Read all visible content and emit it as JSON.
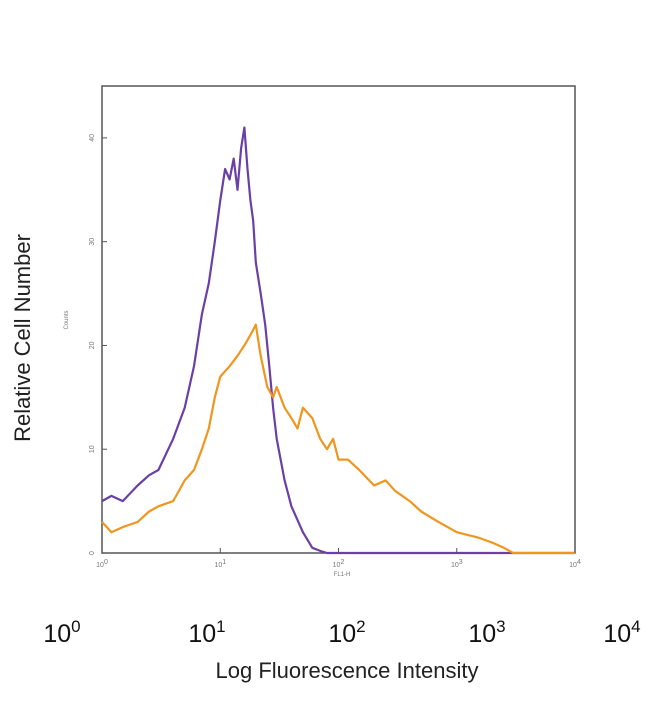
{
  "chart_data": {
    "type": "line",
    "xlabel": "Log Fluorescence Intensity",
    "ylabel": "Relative Cell Number",
    "inner_xlabel": "FL1-H",
    "inner_ylabel": "Counts",
    "x_scale": "log",
    "xlim": [
      1,
      10000
    ],
    "ylim": [
      0,
      45
    ],
    "x_ticks": [
      {
        "value": 1,
        "base": "10",
        "exp": "0"
      },
      {
        "value": 10,
        "base": "10",
        "exp": "1"
      },
      {
        "value": 100,
        "base": "10",
        "exp": "2"
      },
      {
        "value": 1000,
        "base": "10",
        "exp": "3"
      },
      {
        "value": 10000,
        "base": "10",
        "exp": "4"
      }
    ],
    "y_ticks": [
      {
        "value": 0,
        "label": "0"
      },
      {
        "value": 10,
        "label": "10"
      },
      {
        "value": 20,
        "label": "20"
      },
      {
        "value": 30,
        "label": "30"
      },
      {
        "value": 40,
        "label": "40"
      }
    ],
    "grid": false,
    "legend": "none",
    "series": [
      {
        "color": "#6a3fa6",
        "x": [
          1,
          1.2,
          1.5,
          2,
          2.5,
          3,
          4,
          5,
          6,
          7,
          8,
          9,
          10,
          11,
          12,
          13,
          14,
          15,
          16,
          17,
          18,
          19,
          20,
          22,
          24,
          26,
          28,
          30,
          35,
          40,
          50,
          60,
          70,
          80,
          100,
          200,
          500,
          1000,
          10000
        ],
        "y": [
          5,
          5.5,
          5,
          6.5,
          7.5,
          8,
          11,
          14,
          18,
          23,
          26,
          30,
          34,
          37,
          36,
          38,
          35,
          39,
          41,
          37,
          34,
          32,
          28,
          25,
          22,
          18,
          14,
          11,
          7,
          4.5,
          2,
          0.5,
          0.2,
          0,
          0,
          0,
          0,
          0,
          0
        ]
      },
      {
        "color": "#f0961e",
        "x": [
          1,
          1.2,
          1.5,
          2,
          2.5,
          3,
          4,
          5,
          6,
          7,
          8,
          9,
          10,
          12,
          14,
          16,
          18,
          20,
          22,
          25,
          28,
          30,
          35,
          40,
          45,
          50,
          60,
          70,
          80,
          90,
          100,
          120,
          150,
          200,
          250,
          300,
          400,
          500,
          700,
          1000,
          1500,
          2000,
          2500,
          3000,
          10000
        ],
        "y": [
          3,
          2,
          2.5,
          3,
          4,
          4.5,
          5,
          7,
          8,
          10,
          12,
          15,
          17,
          18,
          19,
          20,
          21,
          22,
          19,
          16,
          15,
          16,
          14,
          13,
          12,
          14,
          13,
          11,
          10,
          11,
          9,
          9,
          8,
          6.5,
          7,
          6,
          5,
          4,
          3,
          2,
          1.5,
          1,
          0.5,
          0,
          0
        ]
      }
    ]
  }
}
